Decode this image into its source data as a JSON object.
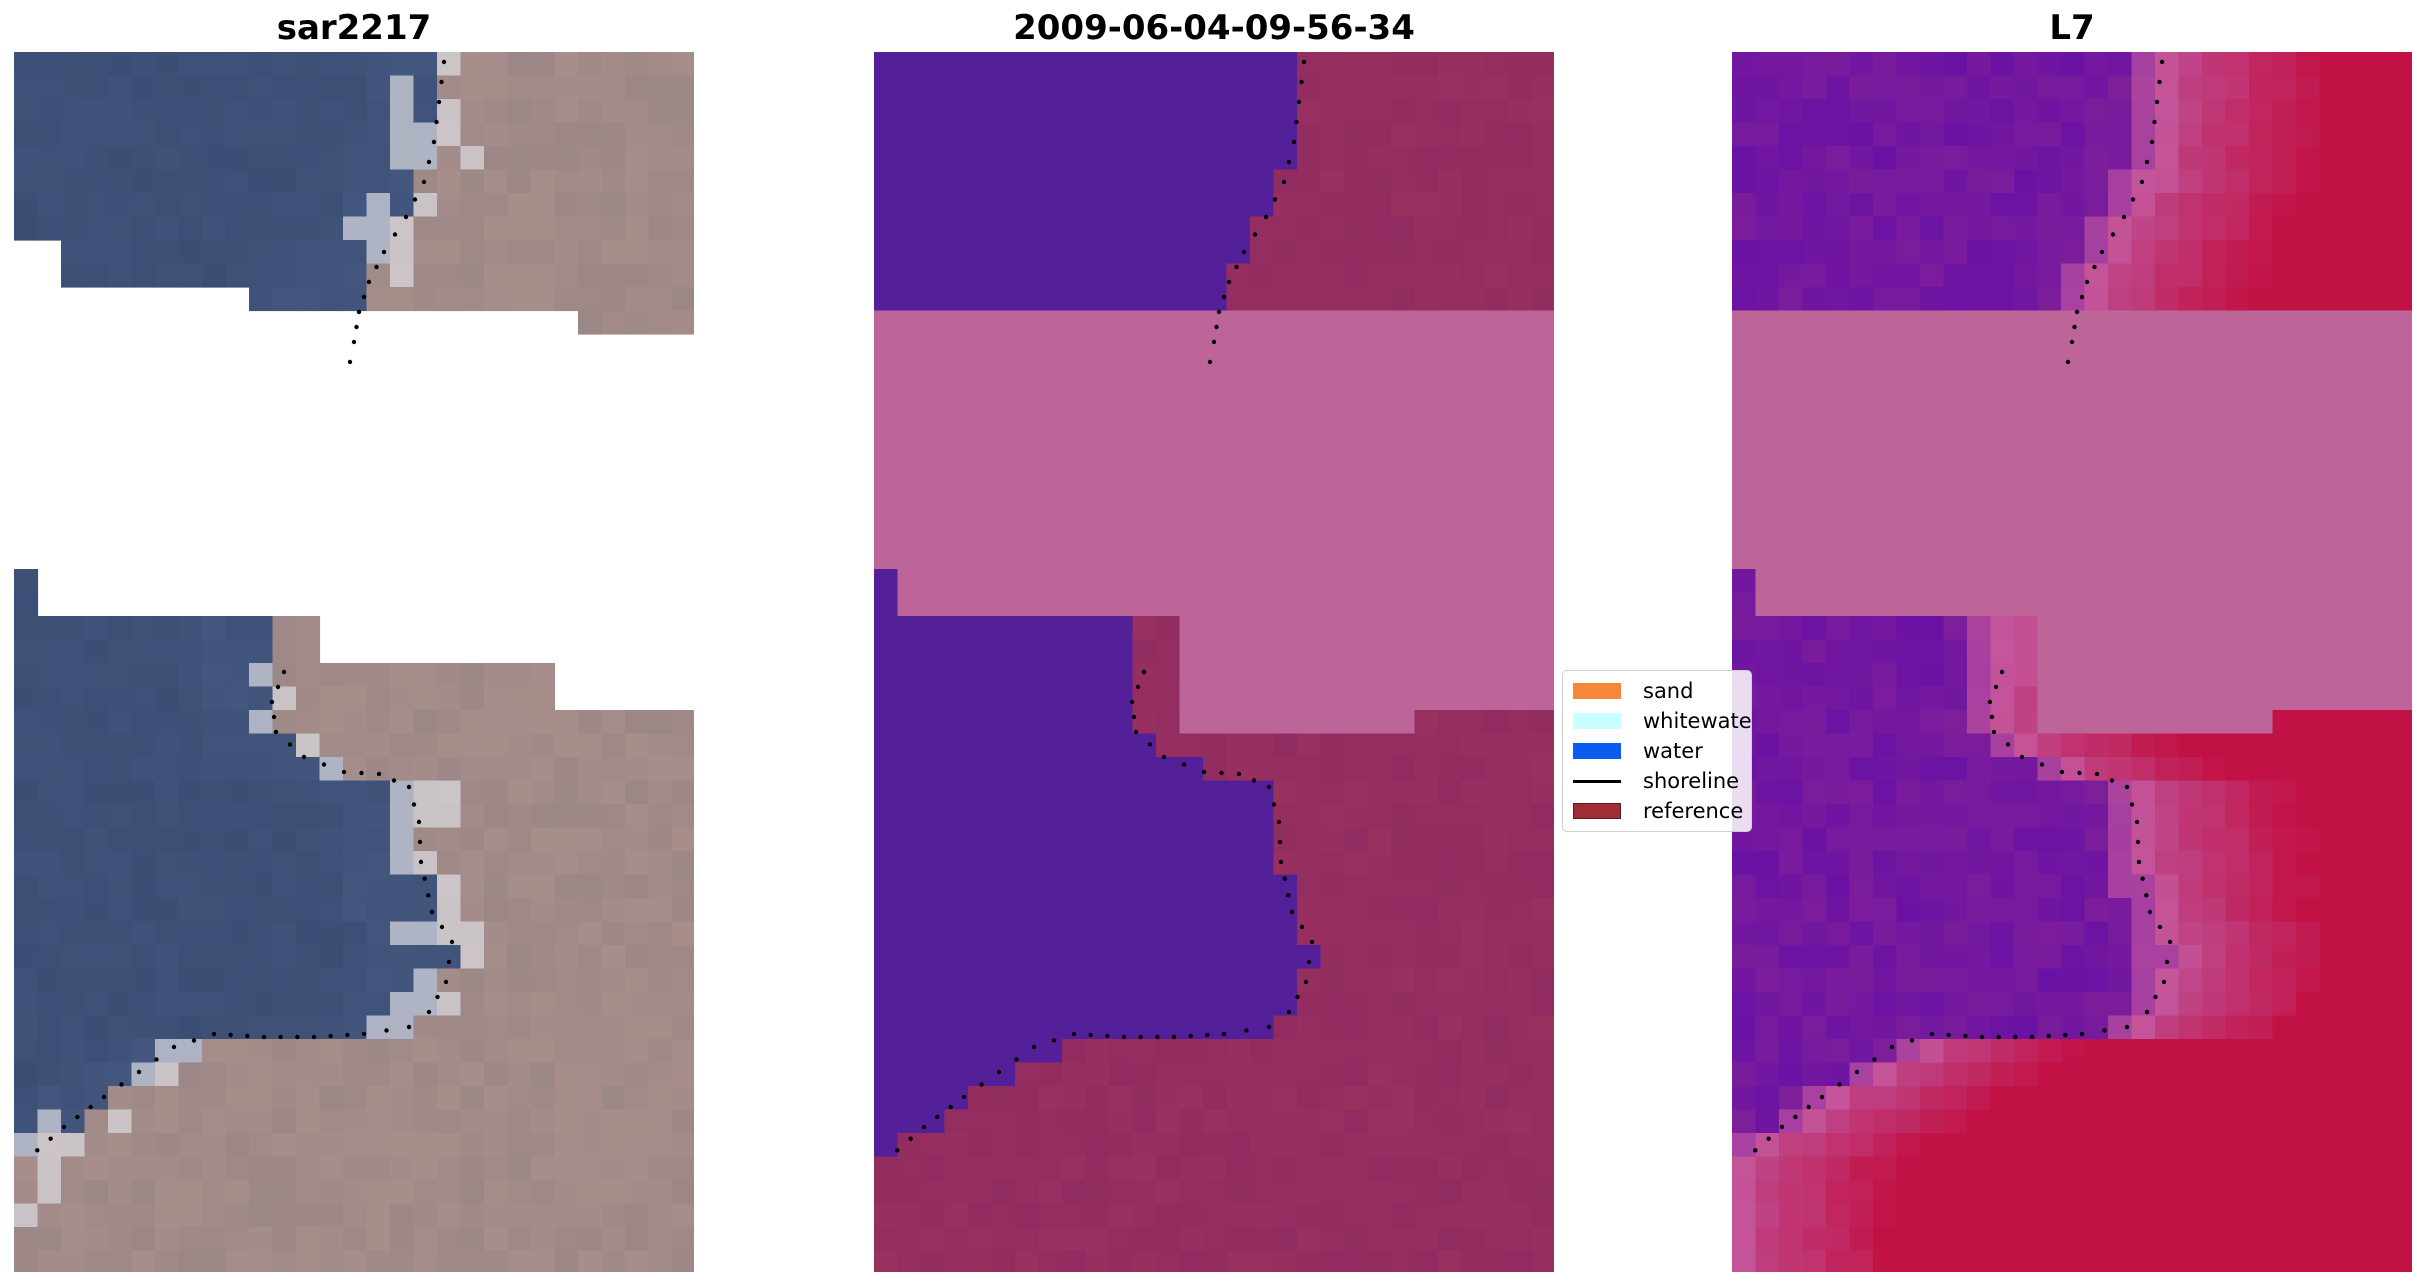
{
  "panels": [
    {
      "title": "sar2217",
      "style": "rgb"
    },
    {
      "title": "2009-06-04-09-56-34",
      "style": "classified"
    },
    {
      "title": "L7",
      "style": "index"
    }
  ],
  "legend": [
    {
      "label": "sand",
      "color": "#f5863a",
      "type": "patch"
    },
    {
      "label": "whitewater",
      "color": "#c9ffff",
      "type": "patch"
    },
    {
      "label": "water",
      "color": "#0a5cf0",
      "type": "patch"
    },
    {
      "label": "shoreline",
      "color": "#000000",
      "type": "line"
    },
    {
      "label": "reference",
      "color": "#a02c35",
      "type": "patch"
    }
  ],
  "colors": {
    "water_class": "#53209a",
    "land_class": "#912c60",
    "cloud_mask": "#bd6498",
    "index_water": "#7f2099",
    "index_land": "#c21245",
    "rgb_water": "#3b4e74",
    "rgb_land": "#9b8786"
  }
}
